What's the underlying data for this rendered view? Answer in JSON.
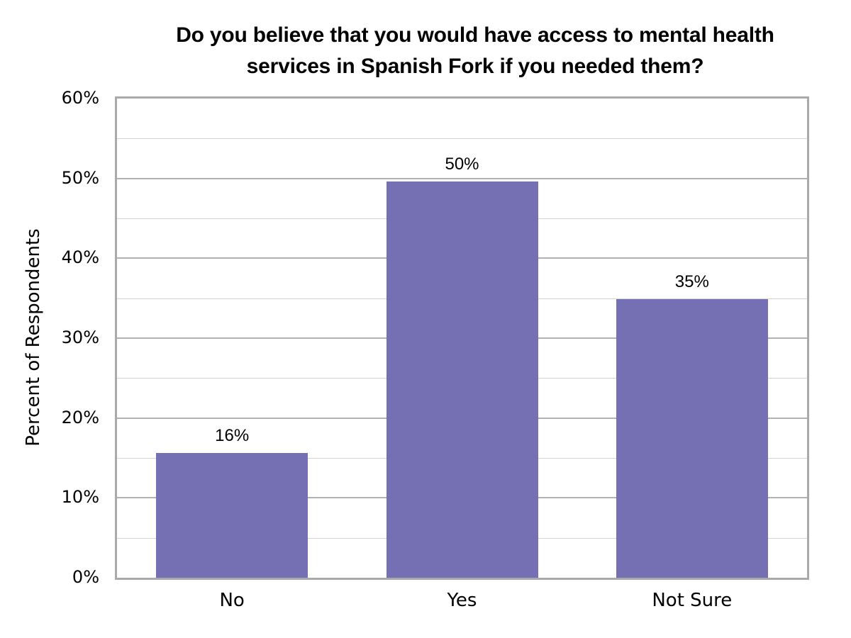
{
  "chart_data": {
    "type": "bar",
    "title": "Do you believe that you would have access to mental health services in Spanish Fork if you needed them?",
    "title_lines": [
      "Do you believe that you would have access to mental health",
      "services in Spanish Fork if you needed them?"
    ],
    "categories": [
      "No",
      "Yes",
      "Not Sure"
    ],
    "values": [
      16,
      50,
      35
    ],
    "data_labels": [
      "16%",
      "50%",
      "35%"
    ],
    "xlabel": "",
    "ylabel": "Percent of Respondents",
    "ylim": [
      0,
      60
    ],
    "yticks": [
      "0%",
      "10%",
      "20%",
      "30%",
      "40%",
      "50%",
      "60%"
    ],
    "grid": {
      "major_step": 10,
      "minor_step": 5
    },
    "legend": null,
    "bar_color": "#7570b3"
  }
}
